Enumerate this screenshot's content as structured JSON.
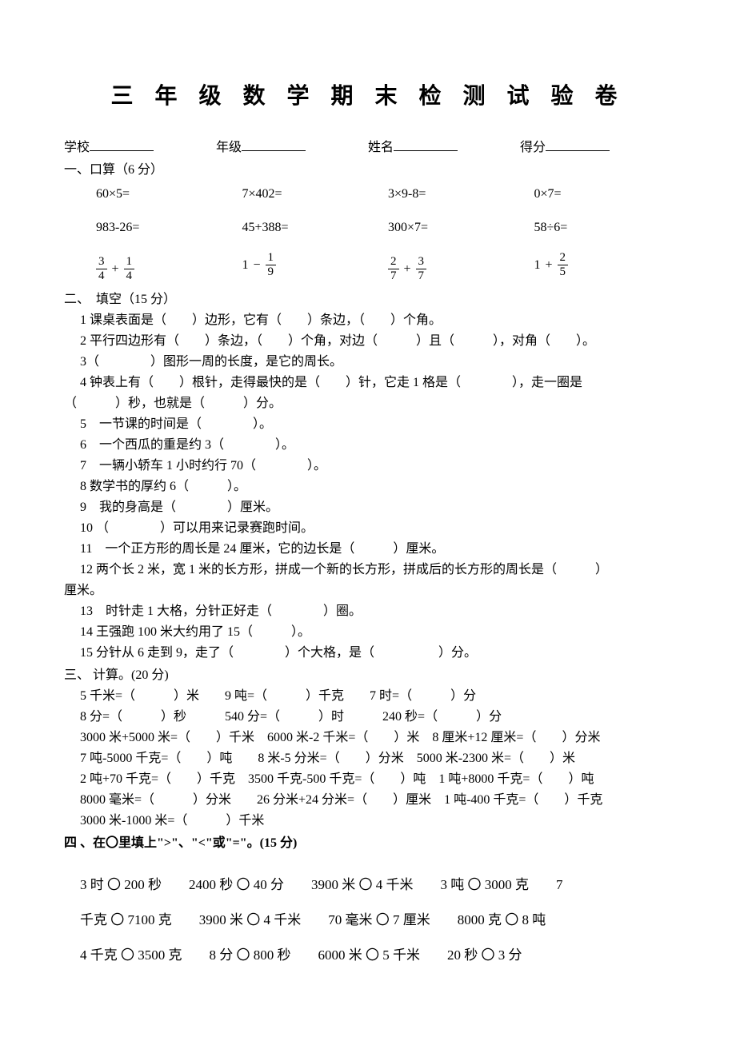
{
  "title": "三 年 级 数 学 期 末 检 测 试 验 卷",
  "info": {
    "school": "学校",
    "grade": "年级",
    "name": "姓名",
    "score": "得分"
  },
  "sec1": {
    "head": "一、口算（6 分）",
    "r1": {
      "a": "60×5=",
      "b": "7×402=",
      "c": "3×9-8=",
      "d": "0×7="
    },
    "r2": {
      "a": "983-26=",
      "b": "45+388=",
      "c": "300×7=",
      "d": "58÷6="
    },
    "r3": {
      "a": {
        "n1": "3",
        "d1": "4",
        "op": "+",
        "n2": "1",
        "d2": "4"
      },
      "b": {
        "whole": "1",
        "op": "−",
        "n2": "1",
        "d2": "9"
      },
      "c": {
        "n1": "2",
        "d1": "7",
        "op": "+",
        "n2": "3",
        "d2": "7"
      },
      "d": {
        "whole": "1",
        "op": "+",
        "n2": "2",
        "d2": "5"
      }
    }
  },
  "sec2": {
    "head": "二、　填空（15 分）",
    "q1": "1 课桌表面是（　　）边形，它有（　　）条边，（　　）个角。",
    "q2": "2 平行四边形有（　　）条边，（　　）个角，对边（　　　）且（　　　），对角（　　）。",
    "q3": "3（　　　　）图形一周的长度，是它的周长。",
    "q4a": "4 钟表上有（　　）根针，走得最快的是（　　）针，它走 1 格是（　　　　），走一圈是",
    "q4b": "（　　　）秒，也就是（　　　）分。",
    "q5": "5　一节课的时间是（　　　　）。",
    "q6": "6　一个西瓜的重是约 3（　　　　）。",
    "q7": "7　一辆小轿车 1 小时约行 70（　　　　）。",
    "q8": "8 数学书的厚约 6（　　　）。",
    "q9": "9　我的身高是（　　　　）厘米。",
    "q10": "10 （　　　　）可以用来记录赛跑时间。",
    "q11": "11　一个正方形的周长是 24 厘米，它的边长是（　　　）厘米。",
    "q12a": "12 两个长 2 米，宽 1 米的长方形，拼成一个新的长方形，拼成后的长方形的周长是（　　　）",
    "q12b": "厘米。",
    "q13": "13　时针走 1 大格，分针正好走（　　　　）圈。",
    "q14": "14 王强跑 100 米大约用了 15（　　　）。",
    "q15": "15 分针从 6 走到 9，走了（　　　　）个大格，是（　　　　　）分。"
  },
  "sec3": {
    "head": "三、 计算。(20 分)",
    "l1": "5 千米=（　　　）米　　9 吨=（　　　）千克　　7 时=（　　　）分",
    "l2": "8 分=（　　　）秒　　　540 分=（　　　）时　　　240 秒=（　　　）分",
    "l3": "3000 米+5000 米=（　　）千米　6000 米-2 千米=（　　）米　8 厘米+12 厘米=（　　）分米",
    "l4": "7 吨-5000 千克=（　　）吨　　8 米-5 分米=（　　）分米　5000 米-2300 米=（　　）米",
    "l5": "2 吨+70 千克=（　　）千克　3500 千克-500 千克=（　　）吨　1 吨+8000 千克=（　　）吨",
    "l6": "8000 毫米=（　　　）分米　　26 分米+24 分米=（　　）厘米　1 吨-400 千克=（　　）千克",
    "l7": "3000 米-1000 米=（　　　）千米"
  },
  "sec4": {
    "head": "四 、在〇里填上\">\"、\"<\"或\"=\"。(15 分)",
    "row1": "3 时 〇 200 秒　　2400 秒 〇 40 分　　3900 米 〇 4 千米　　3 吨 〇 3000 克　　7",
    "row2": "千克 〇 7100 克　　3900 米 〇 4 千米　　70 毫米 〇 7 厘米　　8000 克 〇 8 吨",
    "row3": "4 千克 〇 3500 克　　8 分 〇 800 秒　　6000 米 〇 5 千米　　20 秒 〇 3 分"
  }
}
